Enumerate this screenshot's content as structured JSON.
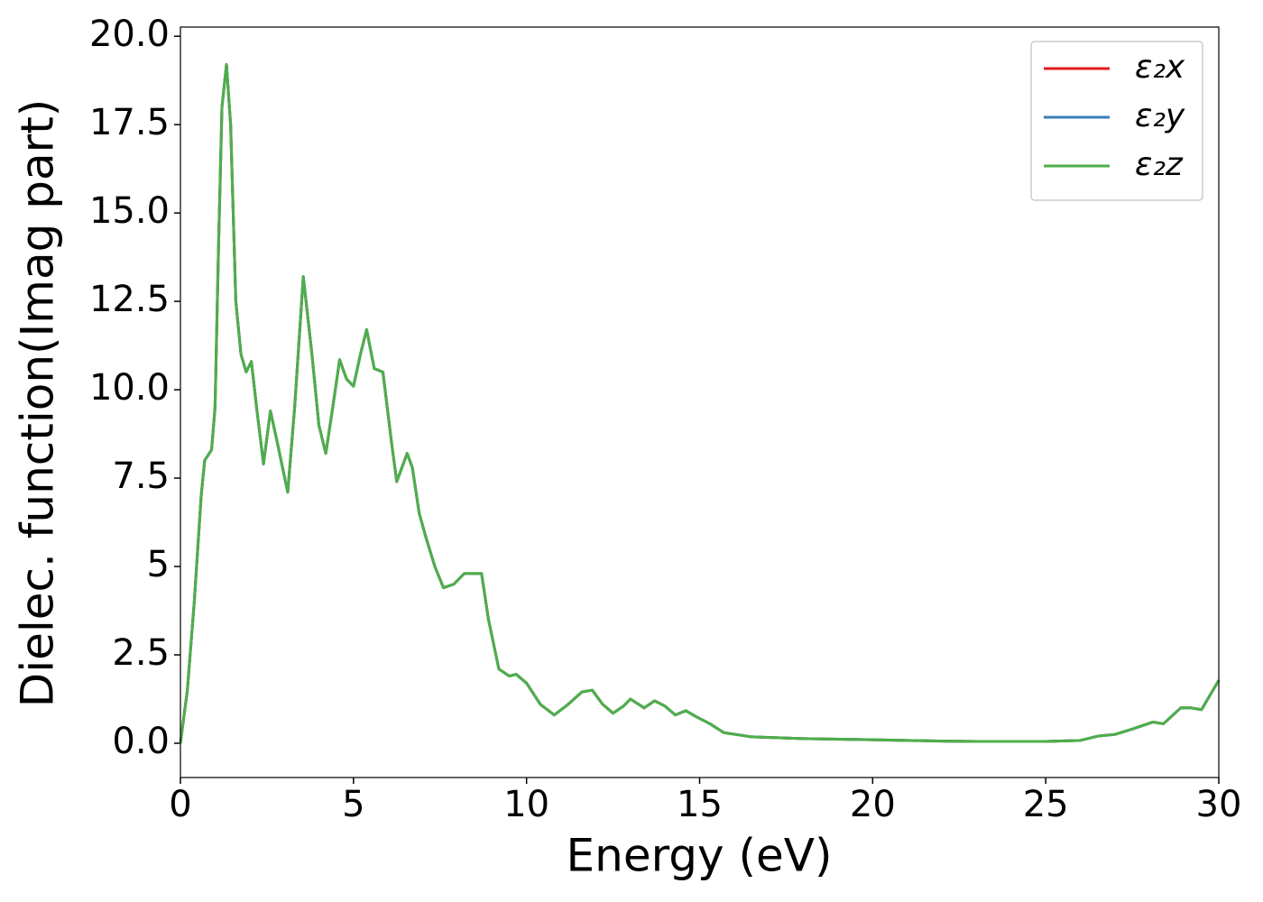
{
  "chart_data": {
    "type": "line",
    "xlabel": "Energy (eV)",
    "ylabel": "Dielec. function(Imag part)",
    "x": [
      0,
      0.2,
      0.4,
      0.6,
      0.7,
      0.9,
      1.0,
      1.1,
      1.2,
      1.33,
      1.45,
      1.6,
      1.75,
      1.9,
      2.05,
      2.2,
      2.4,
      2.6,
      2.8,
      3.1,
      3.3,
      3.55,
      3.8,
      4.0,
      4.2,
      4.4,
      4.6,
      4.8,
      5.0,
      5.2,
      5.38,
      5.6,
      5.85,
      6.1,
      6.25,
      6.4,
      6.55,
      6.7,
      6.9,
      7.1,
      7.35,
      7.6,
      7.9,
      8.2,
      8.7,
      8.9,
      9.2,
      9.5,
      9.7,
      10.0,
      10.4,
      10.8,
      11.2,
      11.6,
      11.9,
      12.2,
      12.5,
      12.8,
      13.0,
      13.4,
      13.7,
      14.0,
      14.3,
      14.6,
      14.9,
      15.3,
      15.7,
      16.5,
      18,
      20,
      22,
      23,
      25,
      26,
      26.5,
      27,
      27.5,
      28.1,
      28.4,
      28.9,
      29.2,
      29.5,
      30
    ],
    "series": [
      {
        "name": "ε₂x",
        "color": "#e41a1c",
        "values": [
          0,
          1.5,
          4,
          7,
          8,
          8.3,
          9.5,
          14,
          18,
          19.2,
          17.5,
          12.5,
          11,
          10.5,
          10.8,
          9.5,
          7.9,
          9.4,
          8.5,
          7.1,
          9.5,
          13.2,
          11,
          9,
          8.2,
          9.5,
          10.85,
          10.3,
          10.1,
          11.0,
          11.7,
          10.6,
          10.5,
          8.5,
          7.4,
          7.8,
          8.2,
          7.8,
          6.5,
          5.8,
          5.0,
          4.4,
          4.5,
          4.8,
          4.8,
          3.5,
          2.1,
          1.9,
          1.95,
          1.7,
          1.1,
          0.8,
          1.1,
          1.45,
          1.5,
          1.1,
          0.85,
          1.05,
          1.25,
          1.0,
          1.2,
          1.05,
          0.8,
          0.92,
          0.75,
          0.55,
          0.3,
          0.18,
          0.13,
          0.1,
          0.06,
          0.05,
          0.05,
          0.08,
          0.2,
          0.25,
          0.4,
          0.6,
          0.55,
          1.0,
          1.0,
          0.95,
          1.78
        ]
      },
      {
        "name": "ε₂y",
        "color": "#377eb8",
        "values": [
          0,
          1.5,
          4,
          7,
          8,
          8.3,
          9.5,
          14,
          18,
          19.2,
          17.5,
          12.5,
          11,
          10.5,
          10.8,
          9.5,
          7.9,
          9.4,
          8.5,
          7.1,
          9.5,
          13.2,
          11,
          9,
          8.2,
          9.5,
          10.85,
          10.3,
          10.1,
          11.0,
          11.7,
          10.6,
          10.5,
          8.5,
          7.4,
          7.8,
          8.2,
          7.8,
          6.5,
          5.8,
          5.0,
          4.4,
          4.5,
          4.8,
          4.8,
          3.5,
          2.1,
          1.9,
          1.95,
          1.7,
          1.1,
          0.8,
          1.1,
          1.45,
          1.5,
          1.1,
          0.85,
          1.05,
          1.25,
          1.0,
          1.2,
          1.05,
          0.8,
          0.92,
          0.75,
          0.55,
          0.3,
          0.18,
          0.13,
          0.1,
          0.06,
          0.05,
          0.05,
          0.08,
          0.2,
          0.25,
          0.4,
          0.6,
          0.55,
          1.0,
          1.0,
          0.95,
          1.78
        ]
      },
      {
        "name": "ε₂z",
        "color": "#4daf4a",
        "values": [
          0,
          1.5,
          4,
          7,
          8,
          8.3,
          9.5,
          14,
          18,
          19.2,
          17.5,
          12.5,
          11,
          10.5,
          10.8,
          9.5,
          7.9,
          9.4,
          8.5,
          7.1,
          9.5,
          13.2,
          11,
          9,
          8.2,
          9.5,
          10.85,
          10.3,
          10.1,
          11.0,
          11.7,
          10.6,
          10.5,
          8.5,
          7.4,
          7.8,
          8.2,
          7.8,
          6.5,
          5.8,
          5.0,
          4.4,
          4.5,
          4.8,
          4.8,
          3.5,
          2.1,
          1.9,
          1.95,
          1.7,
          1.1,
          0.8,
          1.1,
          1.45,
          1.5,
          1.1,
          0.85,
          1.05,
          1.25,
          1.0,
          1.2,
          1.05,
          0.8,
          0.92,
          0.75,
          0.55,
          0.3,
          0.18,
          0.13,
          0.1,
          0.06,
          0.05,
          0.05,
          0.08,
          0.2,
          0.25,
          0.4,
          0.6,
          0.55,
          1.0,
          1.0,
          0.95,
          1.78
        ]
      }
    ],
    "xlim": [
      0,
      30
    ],
    "xticks": [
      0,
      5,
      10,
      15,
      20,
      25,
      30
    ],
    "ylim": [
      -0.97,
      20.26
    ],
    "yticks": [
      {
        "value": 0,
        "label": "0.0"
      },
      2.5,
      5.0,
      7.5,
      {
        "value": 10,
        "label": "10.0"
      },
      12.5,
      {
        "value": 15,
        "label": "15.0"
      },
      17.5,
      {
        "value": 20,
        "label": "20.0"
      }
    ],
    "legend": "upper right",
    "grid": false
  }
}
